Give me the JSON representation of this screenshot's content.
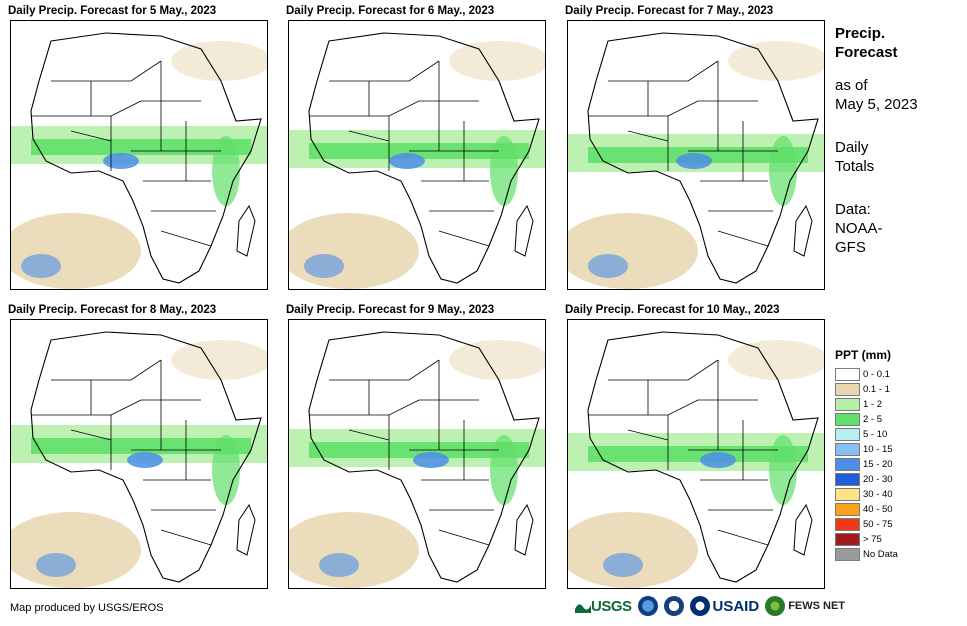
{
  "panels": [
    {
      "title": "Daily Precip. Forecast for 5 May., 2023"
    },
    {
      "title": "Daily Precip. Forecast for 6 May., 2023"
    },
    {
      "title": "Daily Precip. Forecast for 7 May., 2023"
    },
    {
      "title": "Daily Precip. Forecast for 8 May., 2023"
    },
    {
      "title": "Daily Precip. Forecast for 9 May., 2023"
    },
    {
      "title": "Daily Precip. Forecast for 10 May., 2023"
    }
  ],
  "info": {
    "title_line1": "Precip.",
    "title_line2": "Forecast",
    "asof_line1": "as of",
    "asof_line2": "May 5, 2023",
    "totals_line1": "Daily",
    "totals_line2": "Totals",
    "data_line1": "Data:",
    "data_line2": "NOAA-",
    "data_line3": "GFS"
  },
  "legend": {
    "title": "PPT (mm)",
    "items": [
      {
        "label": "0 - 0.1",
        "color": "#ffffff"
      },
      {
        "label": "0.1 - 1",
        "color": "#e8d6b0"
      },
      {
        "label": "1 - 2",
        "color": "#b6f0a8"
      },
      {
        "label": "2 - 5",
        "color": "#5fe06a"
      },
      {
        "label": "5 - 10",
        "color": "#b7eef2"
      },
      {
        "label": "10 - 15",
        "color": "#86bff0"
      },
      {
        "label": "15 - 20",
        "color": "#4c8ee8"
      },
      {
        "label": "20 - 30",
        "color": "#1f5fd9"
      },
      {
        "label": "30 - 40",
        "color": "#ffe38a"
      },
      {
        "label": "40 - 50",
        "color": "#f6a21c"
      },
      {
        "label": "50 - 75",
        "color": "#ee3a14"
      },
      {
        "label": "> 75",
        "color": "#a0191c"
      },
      {
        "label": "No Data",
        "color": "#9a9a9a"
      }
    ]
  },
  "credit": "Map produced by USGS/EROS",
  "logos": {
    "usgs": "USGS",
    "usaid": "USAID",
    "fews": "FEWS NET"
  },
  "colors": {
    "ocean_dry": "#e8d6b0",
    "light_rain": "#b6f0a8",
    "moderate_rain": "#5fe06a",
    "heavy_rain": "#4c8ee8",
    "border": "#000000"
  }
}
